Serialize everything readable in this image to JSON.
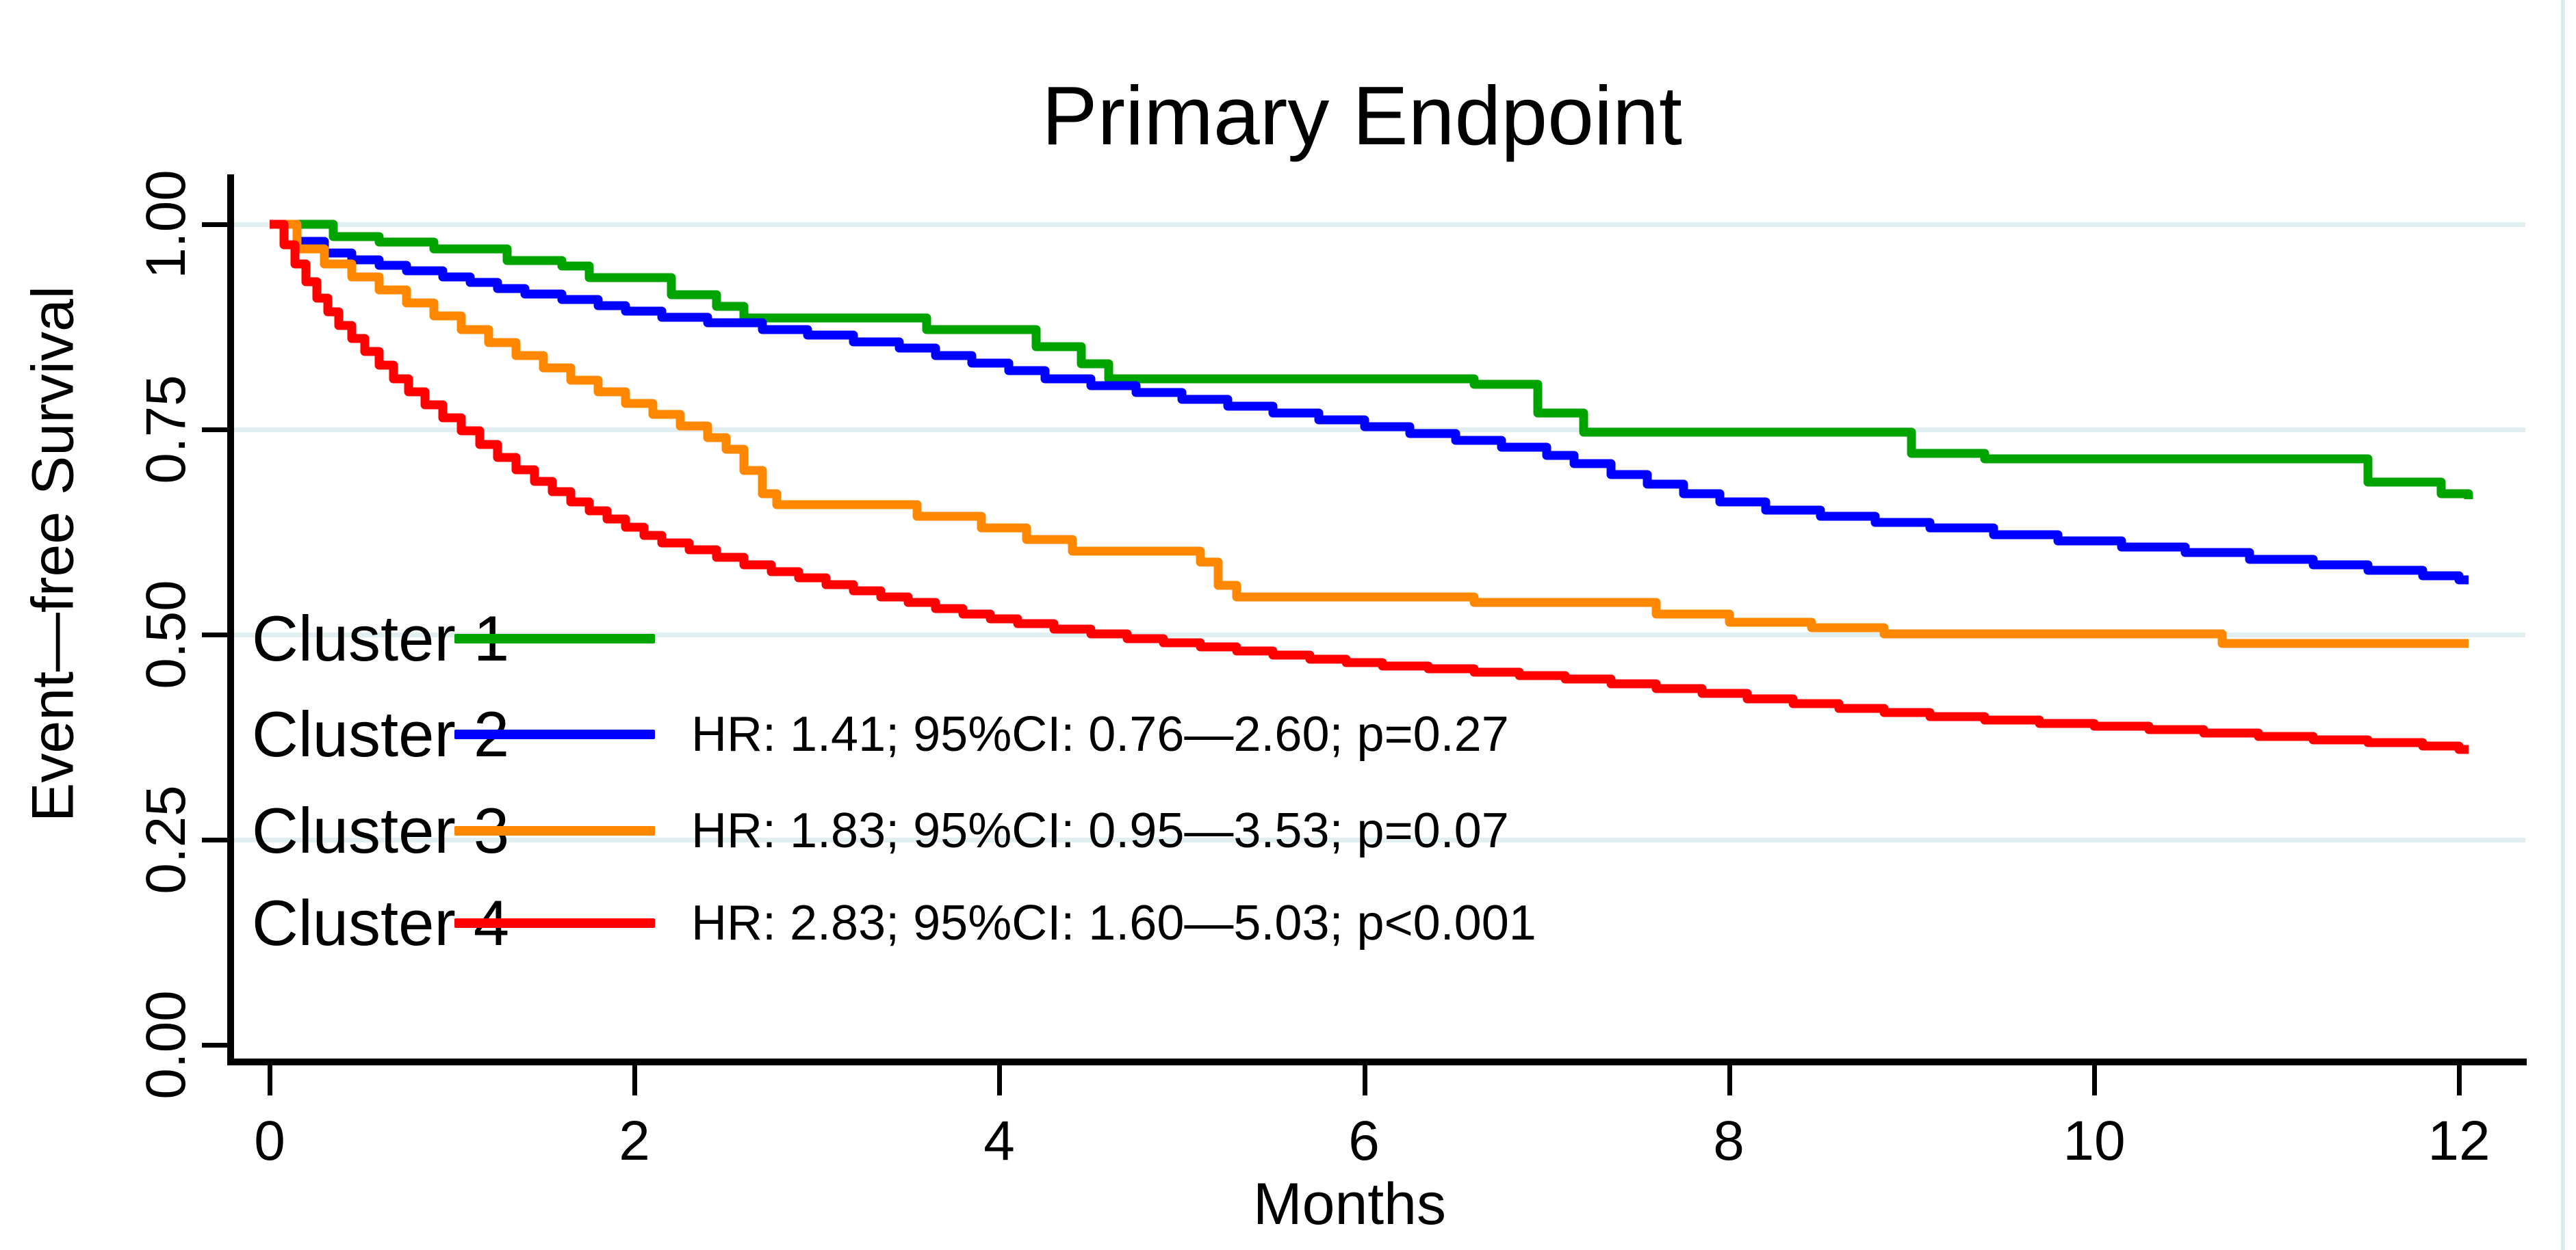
{
  "chart_data": {
    "type": "line",
    "subtype": "kaplan-meier-step",
    "title": "Primary Endpoint",
    "xlabel": "Months",
    "ylabel": "Event—free Survival",
    "xlim": [
      0,
      12.2
    ],
    "ylim": [
      0.0,
      1.0
    ],
    "grid": "horizontal-light",
    "legend_position": "inside-left-middle",
    "x_tick_values": [
      0,
      2,
      4,
      6,
      8,
      10,
      12
    ],
    "x_tick_labels": [
      "0",
      "2",
      "4",
      "6",
      "8",
      "10",
      "12"
    ],
    "y_tick_values": [
      1.0,
      0.75,
      0.5,
      0.25,
      0.0
    ],
    "y_tick_labels": [
      "1.00",
      "0.75",
      "0.50",
      "0.25",
      "0.00"
    ],
    "colors": {
      "cluster1": "#00a400",
      "cluster2": "#0000ff",
      "cluster3": "#ff8800",
      "cluster4": "#ff0000",
      "gridline": "#e2eff1",
      "axis": "#000000"
    },
    "end_time": 12.05,
    "series": [
      {
        "name": "Cluster 1",
        "color": "#00a400",
        "annotation": "",
        "points": [
          [
            0,
            1.0
          ],
          [
            0.35,
            0.985
          ],
          [
            0.6,
            0.978
          ],
          [
            0.9,
            0.97
          ],
          [
            1.3,
            0.956
          ],
          [
            1.6,
            0.949
          ],
          [
            1.75,
            0.935
          ],
          [
            2.2,
            0.914
          ],
          [
            2.45,
            0.9
          ],
          [
            2.6,
            0.886
          ],
          [
            3.6,
            0.872
          ],
          [
            4.2,
            0.851
          ],
          [
            4.45,
            0.83
          ],
          [
            4.6,
            0.812
          ],
          [
            6.6,
            0.805
          ],
          [
            6.95,
            0.77
          ],
          [
            7.2,
            0.747
          ],
          [
            9.0,
            0.721
          ],
          [
            9.4,
            0.714
          ],
          [
            11.5,
            0.686
          ],
          [
            11.9,
            0.672
          ],
          [
            12.05,
            0.665
          ]
        ]
      },
      {
        "name": "Cluster 2",
        "color": "#0000ff",
        "annotation": "HR: 1.41; 95%CI: 0.76—2.60; p=0.27",
        "points": [
          [
            0,
            1.0
          ],
          [
            0.15,
            0.979
          ],
          [
            0.3,
            0.965
          ],
          [
            0.45,
            0.957
          ],
          [
            0.6,
            0.95
          ],
          [
            0.75,
            0.943
          ],
          [
            0.95,
            0.936
          ],
          [
            1.1,
            0.929
          ],
          [
            1.25,
            0.922
          ],
          [
            1.4,
            0.915
          ],
          [
            1.6,
            0.908
          ],
          [
            1.8,
            0.901
          ],
          [
            1.95,
            0.894
          ],
          [
            2.15,
            0.887
          ],
          [
            2.4,
            0.88
          ],
          [
            2.7,
            0.872
          ],
          [
            2.95,
            0.865
          ],
          [
            3.2,
            0.857
          ],
          [
            3.45,
            0.849
          ],
          [
            3.65,
            0.84
          ],
          [
            3.85,
            0.831
          ],
          [
            4.05,
            0.822
          ],
          [
            4.25,
            0.812
          ],
          [
            4.5,
            0.803
          ],
          [
            4.75,
            0.795
          ],
          [
            5.0,
            0.787
          ],
          [
            5.25,
            0.778
          ],
          [
            5.5,
            0.77
          ],
          [
            5.75,
            0.762
          ],
          [
            6.0,
            0.753
          ],
          [
            6.25,
            0.745
          ],
          [
            6.5,
            0.737
          ],
          [
            6.75,
            0.728
          ],
          [
            7.0,
            0.718
          ],
          [
            7.15,
            0.708
          ],
          [
            7.35,
            0.695
          ],
          [
            7.55,
            0.683
          ],
          [
            7.75,
            0.672
          ],
          [
            7.95,
            0.662
          ],
          [
            8.2,
            0.652
          ],
          [
            8.5,
            0.644
          ],
          [
            8.8,
            0.637
          ],
          [
            9.1,
            0.63
          ],
          [
            9.45,
            0.622
          ],
          [
            9.8,
            0.614
          ],
          [
            10.15,
            0.607
          ],
          [
            10.5,
            0.6
          ],
          [
            10.85,
            0.592
          ],
          [
            11.2,
            0.585
          ],
          [
            11.5,
            0.578
          ],
          [
            11.8,
            0.572
          ],
          [
            12.0,
            0.567
          ]
        ]
      },
      {
        "name": "Cluster 3",
        "color": "#ff8800",
        "annotation": "HR: 1.83; 95%CI: 0.95—3.53; p=0.07",
        "points": [
          [
            0,
            1.0
          ],
          [
            0.15,
            0.97
          ],
          [
            0.3,
            0.952
          ],
          [
            0.45,
            0.936
          ],
          [
            0.6,
            0.92
          ],
          [
            0.75,
            0.904
          ],
          [
            0.9,
            0.888
          ],
          [
            1.05,
            0.872
          ],
          [
            1.2,
            0.856
          ],
          [
            1.35,
            0.84
          ],
          [
            1.5,
            0.825
          ],
          [
            1.65,
            0.81
          ],
          [
            1.8,
            0.796
          ],
          [
            1.95,
            0.782
          ],
          [
            2.1,
            0.768
          ],
          [
            2.25,
            0.754
          ],
          [
            2.4,
            0.74
          ],
          [
            2.5,
            0.726
          ],
          [
            2.6,
            0.7
          ],
          [
            2.7,
            0.672
          ],
          [
            2.78,
            0.658
          ],
          [
            3.55,
            0.644
          ],
          [
            3.9,
            0.63
          ],
          [
            4.15,
            0.616
          ],
          [
            4.4,
            0.602
          ],
          [
            5.1,
            0.588
          ],
          [
            5.2,
            0.56
          ],
          [
            5.3,
            0.546
          ],
          [
            6.6,
            0.539
          ],
          [
            7.6,
            0.525
          ],
          [
            8.0,
            0.515
          ],
          [
            8.45,
            0.508
          ],
          [
            8.85,
            0.501
          ],
          [
            10.7,
            0.489
          ]
        ]
      },
      {
        "name": "Cluster 4",
        "color": "#ff0000",
        "annotation": "HR: 2.83; 95%CI: 1.60—5.03; p<0.001",
        "points": [
          [
            0,
            1.0
          ],
          [
            0.08,
            0.975
          ],
          [
            0.14,
            0.952
          ],
          [
            0.2,
            0.93
          ],
          [
            0.26,
            0.91
          ],
          [
            0.32,
            0.893
          ],
          [
            0.38,
            0.877
          ],
          [
            0.45,
            0.861
          ],
          [
            0.52,
            0.845
          ],
          [
            0.6,
            0.828
          ],
          [
            0.68,
            0.812
          ],
          [
            0.76,
            0.796
          ],
          [
            0.85,
            0.78
          ],
          [
            0.95,
            0.764
          ],
          [
            1.05,
            0.748
          ],
          [
            1.15,
            0.732
          ],
          [
            1.25,
            0.716
          ],
          [
            1.35,
            0.701
          ],
          [
            1.45,
            0.687
          ],
          [
            1.55,
            0.674
          ],
          [
            1.65,
            0.662
          ],
          [
            1.75,
            0.651
          ],
          [
            1.85,
            0.641
          ],
          [
            1.95,
            0.631
          ],
          [
            2.05,
            0.621
          ],
          [
            2.15,
            0.612
          ],
          [
            2.3,
            0.603
          ],
          [
            2.45,
            0.594
          ],
          [
            2.6,
            0.585
          ],
          [
            2.75,
            0.577
          ],
          [
            2.9,
            0.569
          ],
          [
            3.05,
            0.561
          ],
          [
            3.2,
            0.553
          ],
          [
            3.35,
            0.546
          ],
          [
            3.5,
            0.539
          ],
          [
            3.65,
            0.532
          ],
          [
            3.8,
            0.525
          ],
          [
            3.95,
            0.519
          ],
          [
            4.1,
            0.513
          ],
          [
            4.3,
            0.507
          ],
          [
            4.5,
            0.501
          ],
          [
            4.7,
            0.495
          ],
          [
            4.9,
            0.49
          ],
          [
            5.1,
            0.485
          ],
          [
            5.3,
            0.48
          ],
          [
            5.5,
            0.475
          ],
          [
            5.7,
            0.47
          ],
          [
            5.9,
            0.466
          ],
          [
            6.1,
            0.462
          ],
          [
            6.35,
            0.458
          ],
          [
            6.6,
            0.454
          ],
          [
            6.85,
            0.45
          ],
          [
            7.1,
            0.446
          ],
          [
            7.35,
            0.44
          ],
          [
            7.6,
            0.434
          ],
          [
            7.85,
            0.428
          ],
          [
            8.1,
            0.422
          ],
          [
            8.35,
            0.416
          ],
          [
            8.6,
            0.41
          ],
          [
            8.85,
            0.405
          ],
          [
            9.1,
            0.4
          ],
          [
            9.4,
            0.396
          ],
          [
            9.7,
            0.392
          ],
          [
            10.0,
            0.388
          ],
          [
            10.3,
            0.384
          ],
          [
            10.6,
            0.38
          ],
          [
            10.9,
            0.376
          ],
          [
            11.2,
            0.372
          ],
          [
            11.5,
            0.368
          ],
          [
            11.8,
            0.364
          ],
          [
            12.0,
            0.36
          ]
        ]
      }
    ]
  }
}
